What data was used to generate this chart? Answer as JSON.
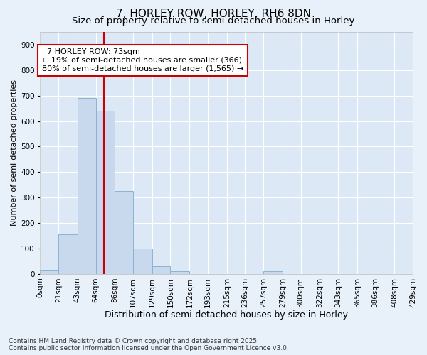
{
  "title": "7, HORLEY ROW, HORLEY, RH6 8DN",
  "subtitle": "Size of property relative to semi-detached houses in Horley",
  "xlabel": "Distribution of semi-detached houses by size in Horley",
  "ylabel": "Number of semi-detached properties",
  "property_size": 73,
  "property_label": "7 HORLEY ROW: 73sqm",
  "pct_smaller": 19,
  "pct_larger": 80,
  "n_smaller": 366,
  "n_larger": 1565,
  "bin_edges": [
    0,
    21,
    43,
    64,
    86,
    107,
    129,
    150,
    172,
    193,
    215,
    236,
    257,
    279,
    300,
    322,
    343,
    365,
    386,
    408,
    429
  ],
  "bin_labels": [
    "0sqm",
    "21sqm",
    "43sqm",
    "64sqm",
    "86sqm",
    "107sqm",
    "129sqm",
    "150sqm",
    "172sqm",
    "193sqm",
    "215sqm",
    "236sqm",
    "257sqm",
    "279sqm",
    "300sqm",
    "322sqm",
    "343sqm",
    "365sqm",
    "386sqm",
    "408sqm",
    "429sqm"
  ],
  "bar_heights": [
    15,
    155,
    690,
    640,
    325,
    100,
    30,
    10,
    0,
    0,
    0,
    0,
    10,
    0,
    0,
    0,
    0,
    0,
    0,
    0
  ],
  "bar_color": "#c8d8ed",
  "bar_edge_color": "#8ab4d4",
  "red_line_color": "#cc0000",
  "annotation_box_edgecolor": "#cc0000",
  "background_color": "#e8f0fa",
  "plot_bg_color": "#dce8f5",
  "grid_color": "#ffffff",
  "ylim": [
    0,
    950
  ],
  "yticks": [
    0,
    100,
    200,
    300,
    400,
    500,
    600,
    700,
    800,
    900
  ],
  "footer_text": "Contains HM Land Registry data © Crown copyright and database right 2025.\nContains public sector information licensed under the Open Government Licence v3.0.",
  "title_fontsize": 11,
  "subtitle_fontsize": 9.5,
  "xlabel_fontsize": 9,
  "ylabel_fontsize": 8,
  "tick_fontsize": 7.5,
  "footer_fontsize": 6.5,
  "ann_fontsize": 8
}
